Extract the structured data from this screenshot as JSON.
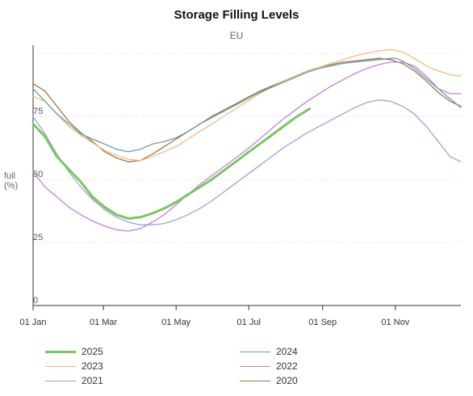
{
  "chart_data": {
    "type": "line",
    "title": "Storage Filling Levels",
    "subtitle": "EU",
    "ylabel": "full (%)",
    "ylabel_lines": [
      "full",
      "(%)"
    ],
    "xlabel": "",
    "ylim": [
      0,
      100
    ],
    "y_ticks": [
      0,
      25,
      50,
      75
    ],
    "x_ticks": [
      "01 Jan",
      "01 Mar",
      "01 May",
      "01 Jul",
      "01 Sep",
      "01 Nov"
    ],
    "x_tick_days": [
      0,
      59,
      120,
      181,
      243,
      304
    ],
    "grid": true,
    "legend_position": "bottom",
    "series": [
      {
        "name": "2025",
        "color": "#7dc464",
        "bold": true,
        "points": [
          [
            0,
            72
          ],
          [
            10,
            67
          ],
          [
            20,
            59
          ],
          [
            30,
            54
          ],
          [
            40,
            49
          ],
          [
            50,
            43
          ],
          [
            60,
            39
          ],
          [
            70,
            36
          ],
          [
            80,
            34.5
          ],
          [
            90,
            35
          ],
          [
            100,
            36.5
          ],
          [
            110,
            38.5
          ],
          [
            120,
            41
          ],
          [
            130,
            44
          ],
          [
            140,
            47
          ],
          [
            150,
            50
          ],
          [
            160,
            53.5
          ],
          [
            170,
            57
          ],
          [
            180,
            60.5
          ],
          [
            190,
            64
          ],
          [
            200,
            67.5
          ],
          [
            210,
            71
          ],
          [
            220,
            74.5
          ],
          [
            232,
            78
          ]
        ]
      },
      {
        "name": "2024",
        "color": "#6a9ea1",
        "points": [
          [
            0,
            86
          ],
          [
            10,
            81
          ],
          [
            20,
            76
          ],
          [
            30,
            72
          ],
          [
            40,
            68
          ],
          [
            50,
            66
          ],
          [
            60,
            64
          ],
          [
            70,
            62
          ],
          [
            80,
            61
          ],
          [
            90,
            62
          ],
          [
            100,
            64
          ],
          [
            110,
            65
          ],
          [
            120,
            66.5
          ],
          [
            130,
            69
          ],
          [
            140,
            72
          ],
          [
            150,
            74.5
          ],
          [
            160,
            77
          ],
          [
            170,
            79.5
          ],
          [
            180,
            82
          ],
          [
            190,
            84.5
          ],
          [
            200,
            86.5
          ],
          [
            210,
            88.5
          ],
          [
            220,
            90.5
          ],
          [
            230,
            92.5
          ],
          [
            240,
            94
          ],
          [
            250,
            95
          ],
          [
            260,
            96
          ],
          [
            270,
            96.5
          ],
          [
            280,
            97
          ],
          [
            290,
            97.5
          ],
          [
            300,
            98
          ],
          [
            305,
            98
          ],
          [
            310,
            97
          ],
          [
            320,
            94
          ],
          [
            330,
            90
          ],
          [
            340,
            86
          ],
          [
            350,
            82
          ],
          [
            359,
            78.5
          ]
        ]
      },
      {
        "name": "2023",
        "color": "#f1bb83",
        "points": [
          [
            0,
            83
          ],
          [
            10,
            81
          ],
          [
            20,
            76
          ],
          [
            30,
            71
          ],
          [
            40,
            67.5
          ],
          [
            50,
            64.5
          ],
          [
            60,
            61.5
          ],
          [
            70,
            59.5
          ],
          [
            80,
            58
          ],
          [
            90,
            57.5
          ],
          [
            100,
            59
          ],
          [
            110,
            61
          ],
          [
            120,
            63
          ],
          [
            130,
            66
          ],
          [
            140,
            69
          ],
          [
            150,
            72
          ],
          [
            160,
            75
          ],
          [
            170,
            78
          ],
          [
            180,
            81
          ],
          [
            190,
            84
          ],
          [
            200,
            86.5
          ],
          [
            210,
            89
          ],
          [
            220,
            91
          ],
          [
            230,
            93
          ],
          [
            240,
            94.5
          ],
          [
            250,
            96
          ],
          [
            260,
            97.5
          ],
          [
            270,
            99
          ],
          [
            280,
            100
          ],
          [
            290,
            101
          ],
          [
            300,
            101.5
          ],
          [
            310,
            100.5
          ],
          [
            320,
            98
          ],
          [
            330,
            95
          ],
          [
            340,
            93
          ],
          [
            350,
            91.5
          ],
          [
            359,
            91
          ]
        ]
      },
      {
        "name": "2022",
        "color": "#c57fd9",
        "points": [
          [
            0,
            53
          ],
          [
            10,
            47
          ],
          [
            20,
            43
          ],
          [
            30,
            39
          ],
          [
            40,
            36
          ],
          [
            50,
            33.5
          ],
          [
            60,
            31.5
          ],
          [
            70,
            30
          ],
          [
            80,
            29.5
          ],
          [
            90,
            30.5
          ],
          [
            100,
            33
          ],
          [
            110,
            36
          ],
          [
            120,
            40
          ],
          [
            130,
            44
          ],
          [
            140,
            48
          ],
          [
            150,
            51.5
          ],
          [
            160,
            55
          ],
          [
            170,
            58.5
          ],
          [
            180,
            62
          ],
          [
            190,
            66
          ],
          [
            200,
            70
          ],
          [
            210,
            74
          ],
          [
            220,
            77.5
          ],
          [
            230,
            81
          ],
          [
            240,
            84
          ],
          [
            250,
            87
          ],
          [
            260,
            89.5
          ],
          [
            270,
            92
          ],
          [
            280,
            94
          ],
          [
            290,
            95.5
          ],
          [
            300,
            96.5
          ],
          [
            310,
            96.5
          ],
          [
            320,
            95
          ],
          [
            330,
            91
          ],
          [
            340,
            86
          ],
          [
            350,
            84
          ],
          [
            359,
            84
          ]
        ]
      },
      {
        "name": "2021",
        "color": "#a0a0e0",
        "points": [
          [
            0,
            75
          ],
          [
            10,
            68
          ],
          [
            20,
            60
          ],
          [
            30,
            53
          ],
          [
            40,
            47
          ],
          [
            50,
            42
          ],
          [
            60,
            38
          ],
          [
            70,
            35
          ],
          [
            80,
            33
          ],
          [
            90,
            32
          ],
          [
            100,
            32
          ],
          [
            110,
            32.5
          ],
          [
            120,
            34
          ],
          [
            130,
            36
          ],
          [
            140,
            38.5
          ],
          [
            150,
            41.5
          ],
          [
            160,
            45
          ],
          [
            170,
            48.5
          ],
          [
            180,
            52
          ],
          [
            190,
            55.5
          ],
          [
            200,
            59
          ],
          [
            210,
            62.5
          ],
          [
            220,
            65.5
          ],
          [
            230,
            68.5
          ],
          [
            240,
            71
          ],
          [
            250,
            73.5
          ],
          [
            260,
            76
          ],
          [
            270,
            78.5
          ],
          [
            280,
            80.5
          ],
          [
            290,
            81.5
          ],
          [
            300,
            81
          ],
          [
            310,
            79
          ],
          [
            320,
            76
          ],
          [
            330,
            71
          ],
          [
            340,
            65
          ],
          [
            350,
            59
          ],
          [
            359,
            57
          ]
        ]
      },
      {
        "name": "2020",
        "color": "#a3744e",
        "points": [
          [
            0,
            88
          ],
          [
            10,
            85
          ],
          [
            20,
            79
          ],
          [
            30,
            73
          ],
          [
            40,
            68.5
          ],
          [
            50,
            65
          ],
          [
            60,
            61
          ],
          [
            70,
            58.5
          ],
          [
            80,
            57
          ],
          [
            90,
            57.5
          ],
          [
            100,
            60
          ],
          [
            110,
            63
          ],
          [
            120,
            66
          ],
          [
            130,
            69
          ],
          [
            140,
            72
          ],
          [
            150,
            75
          ],
          [
            160,
            77.5
          ],
          [
            170,
            80
          ],
          [
            180,
            82.5
          ],
          [
            190,
            85
          ],
          [
            200,
            87
          ],
          [
            210,
            89
          ],
          [
            220,
            91
          ],
          [
            230,
            93
          ],
          [
            240,
            94.5
          ],
          [
            250,
            95.5
          ],
          [
            260,
            96.5
          ],
          [
            270,
            97
          ],
          [
            280,
            97.5
          ],
          [
            290,
            98
          ],
          [
            300,
            97.5
          ],
          [
            310,
            96
          ],
          [
            320,
            93
          ],
          [
            330,
            89
          ],
          [
            340,
            84.5
          ],
          [
            350,
            81
          ],
          [
            359,
            79
          ]
        ]
      }
    ]
  }
}
